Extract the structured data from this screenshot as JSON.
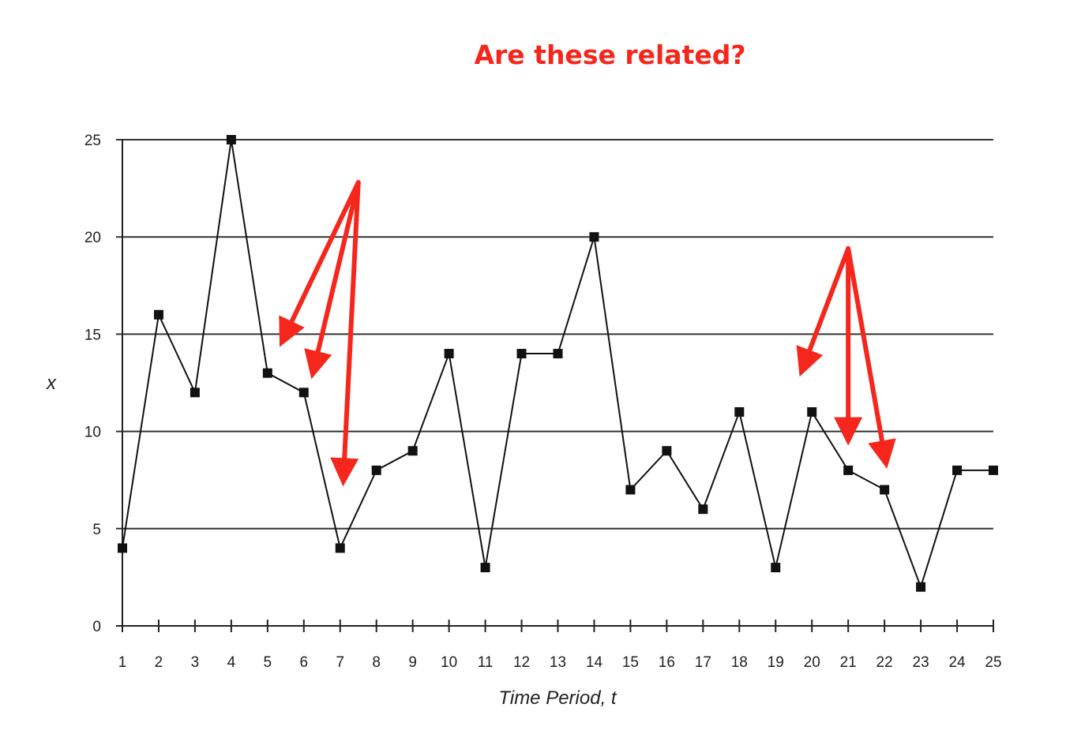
{
  "chart_data": {
    "type": "line",
    "title": "Are these related?",
    "xlabel": "Time Period, t",
    "ylabel": "x",
    "x": [
      1,
      2,
      3,
      4,
      5,
      6,
      7,
      8,
      9,
      10,
      11,
      12,
      13,
      14,
      15,
      16,
      17,
      18,
      19,
      20,
      21,
      22,
      23,
      24,
      25
    ],
    "series": [
      {
        "values": [
          4,
          16,
          12,
          25,
          13,
          12,
          4,
          8,
          9,
          14,
          3,
          14,
          14,
          20,
          7,
          9,
          6,
          11,
          3,
          11,
          8,
          7,
          2,
          8,
          8
        ]
      }
    ],
    "xlim": [
      1,
      25
    ],
    "ylim": [
      0,
      25
    ],
    "yticks": [
      0,
      5,
      10,
      15,
      20,
      25
    ],
    "grid": "horizontal",
    "annotations": [
      {
        "type": "arrow-group",
        "origin": {
          "x": 7.5,
          "y": 22.8
        },
        "targets": [
          {
            "x": 5.5,
            "y": 15
          },
          {
            "x": 6.3,
            "y": 13.4
          },
          {
            "x": 7.1,
            "y": 7.9
          }
        ]
      },
      {
        "type": "arrow-group",
        "origin": {
          "x": 21,
          "y": 19.4
        },
        "targets": [
          {
            "x": 19.8,
            "y": 13.5
          },
          {
            "x": 21,
            "y": 10
          },
          {
            "x": 22,
            "y": 8.8
          }
        ]
      }
    ],
    "colors": {
      "line": "#111111",
      "grid": "#333333",
      "arrow": "#f5261b",
      "title": "#f5261b"
    }
  }
}
